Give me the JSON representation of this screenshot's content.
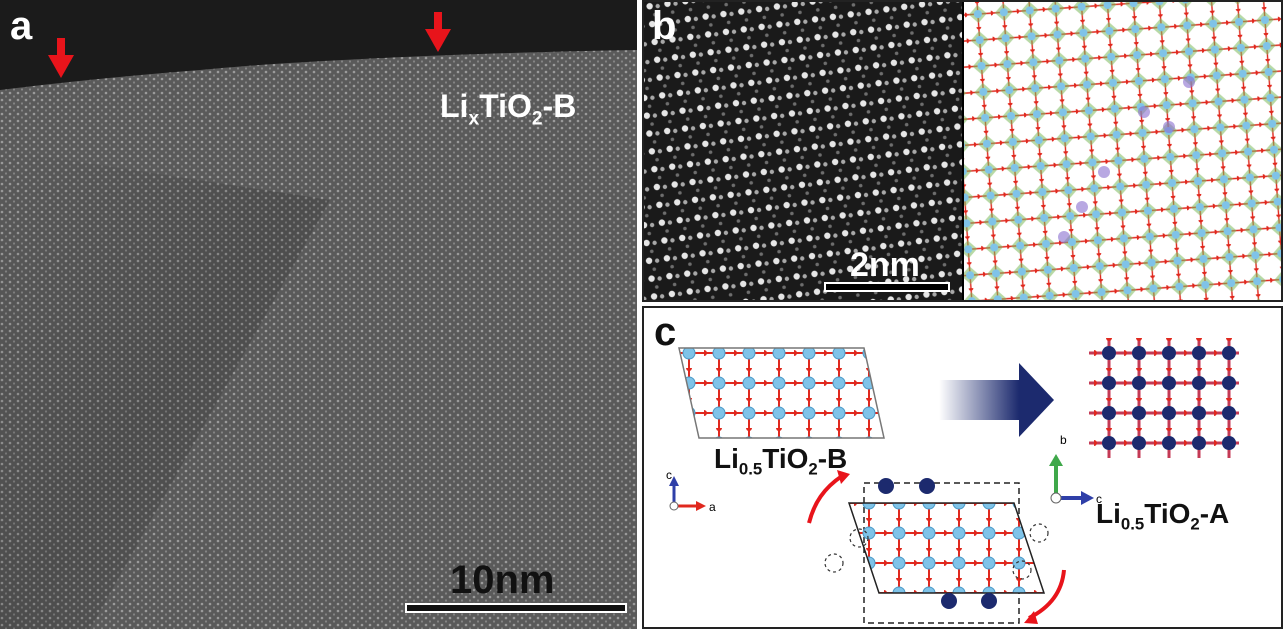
{
  "panels": {
    "a": {
      "letter": "a",
      "formula_main": "Li",
      "formula_sub1": "x",
      "formula_mid": "TiO",
      "formula_sub2": "2",
      "formula_end": "-B",
      "scale_label": "10nm"
    },
    "b": {
      "letter": "b",
      "scale_label": "2nm"
    },
    "c": {
      "letter": "c",
      "left_label": {
        "main": "Li",
        "sub": "0.5",
        "mid": "TiO",
        "sub2": "2",
        "end": "-B"
      },
      "right_label": {
        "main": "Li",
        "sub": "0.5",
        "mid": "TiO",
        "sub2": "2",
        "end": "-A"
      },
      "axes_left": {
        "up": "c",
        "right": "a"
      },
      "axes_right": {
        "up": "b",
        "right": "c"
      }
    }
  },
  "colors": {
    "arrow_red": "#e8141b",
    "ti_blue": "#7fc3e8",
    "o_red": "#e0281e",
    "li_navy": "#1c2a6e",
    "green_poly": "#7cba5a",
    "purple_poly": "#8a6fd0"
  }
}
